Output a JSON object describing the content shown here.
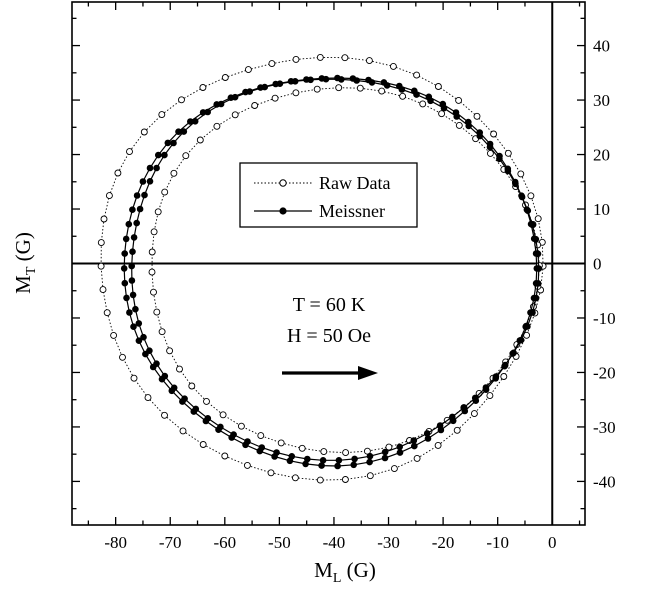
{
  "chart_data": {
    "type": "scatter",
    "xlabel": "M",
    "xlabel_sub": "L",
    "xlabel_unit": "(G)",
    "ylabel": "M",
    "ylabel_sub": "T",
    "ylabel_unit": "(G)",
    "xlim": [
      -88,
      6
    ],
    "ylim": [
      -48,
      48
    ],
    "x_ticks": [
      -80,
      -70,
      -60,
      -50,
      -40,
      -30,
      -20,
      -10,
      0
    ],
    "x_tick_labels": [
      "-80",
      "-70",
      "-60",
      "-50",
      "-40",
      "-30",
      "-20",
      "-10",
      "0"
    ],
    "y_ticks": [
      -40,
      -30,
      -20,
      -10,
      0,
      10,
      20,
      30,
      40
    ],
    "y_tick_labels": [
      "-40",
      "-30",
      "-20",
      "-10",
      "0",
      "10",
      "20",
      "30",
      "40"
    ],
    "y_axis_side": "right",
    "grid": false,
    "zero_lines": true,
    "legend_position": "center",
    "series": [
      {
        "name": "Raw Data",
        "marker": "open-circle",
        "line": "dotted",
        "loops": [
          {
            "center": [
              -42.5,
              -0.5
            ],
            "rx": 40.5,
            "ry": 38.8,
            "phase": 0
          },
          {
            "center": [
              -38.5,
              -1.0
            ],
            "rx": 35.5,
            "ry": 33.5,
            "phase": 0.13
          }
        ],
        "points_per_loop": 56
      },
      {
        "name": "Meissner",
        "marker": "filled-circle",
        "line": "solid",
        "loops": [
          {
            "center": [
              -40.8,
              -0.9
            ],
            "rx": 37.8,
            "ry": 35.6,
            "phase": 0
          },
          {
            "center": [
              -40.3,
              -0.7
            ],
            "rx": 37.3,
            "ry": 35.0,
            "phase": 0.07
          }
        ],
        "points_per_loop": 82
      }
    ],
    "annotations": {
      "temperature": "T = 60 K",
      "field": "H = 50 Oe",
      "arrow": "right"
    }
  }
}
